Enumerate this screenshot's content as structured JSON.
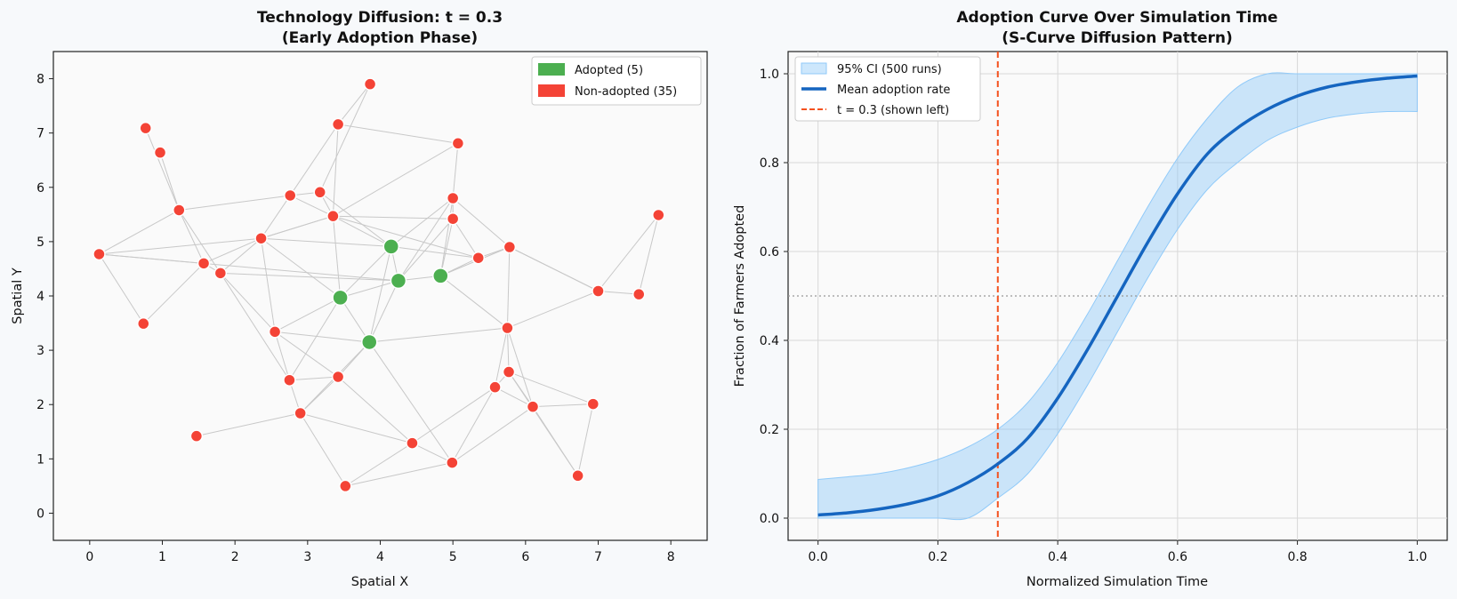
{
  "chart_data": [
    {
      "type": "scatter",
      "subtype": "network-graph",
      "title": [
        "Technology Diffusion: t = 0.3",
        "(Early Adoption Phase)"
      ],
      "xlabel": "Spatial X",
      "ylabel": "Spatial Y",
      "xlim": [
        -0.5,
        8.5
      ],
      "ylim": [
        -0.5,
        8.5
      ],
      "xticks": [
        0,
        1,
        2,
        3,
        4,
        5,
        6,
        7,
        8
      ],
      "yticks": [
        0,
        1,
        2,
        3,
        4,
        5,
        6,
        7,
        8
      ],
      "grid": false,
      "legend": {
        "position": "top-right",
        "entries": [
          {
            "label": "Adopted (5)",
            "color": "#4caf50"
          },
          {
            "label": "Non-adopted (35)",
            "color": "#f44336"
          }
        ]
      },
      "colors": {
        "adopted": "#4caf50",
        "non_adopted": "#f44336",
        "edge": "#c8c8c8"
      },
      "nodes": [
        {
          "id": 0,
          "x": 3.45,
          "y": 3.97,
          "adopted": true
        },
        {
          "id": 1,
          "x": 4.15,
          "y": 4.91,
          "adopted": true
        },
        {
          "id": 2,
          "x": 4.25,
          "y": 4.28,
          "adopted": true
        },
        {
          "id": 3,
          "x": 4.83,
          "y": 4.37,
          "adopted": true
        },
        {
          "id": 4,
          "x": 3.85,
          "y": 3.15,
          "adopted": true
        },
        {
          "id": 5,
          "x": 3.86,
          "y": 7.9,
          "adopted": false
        },
        {
          "id": 6,
          "x": 3.42,
          "y": 7.16,
          "adopted": false
        },
        {
          "id": 7,
          "x": 5.07,
          "y": 6.81,
          "adopted": false
        },
        {
          "id": 8,
          "x": 0.77,
          "y": 7.09,
          "adopted": false
        },
        {
          "id": 9,
          "x": 0.97,
          "y": 6.64,
          "adopted": false
        },
        {
          "id": 10,
          "x": 1.23,
          "y": 5.58,
          "adopted": false
        },
        {
          "id": 11,
          "x": 2.76,
          "y": 5.85,
          "adopted": false
        },
        {
          "id": 12,
          "x": 3.17,
          "y": 5.91,
          "adopted": false
        },
        {
          "id": 13,
          "x": 3.35,
          "y": 5.47,
          "adopted": false
        },
        {
          "id": 14,
          "x": 5.0,
          "y": 5.8,
          "adopted": false
        },
        {
          "id": 15,
          "x": 5.0,
          "y": 5.42,
          "adopted": false
        },
        {
          "id": 16,
          "x": 0.13,
          "y": 4.77,
          "adopted": false
        },
        {
          "id": 17,
          "x": 2.36,
          "y": 5.06,
          "adopted": false
        },
        {
          "id": 18,
          "x": 1.57,
          "y": 4.6,
          "adopted": false
        },
        {
          "id": 19,
          "x": 1.8,
          "y": 4.42,
          "adopted": false
        },
        {
          "id": 20,
          "x": 5.35,
          "y": 4.7,
          "adopted": false
        },
        {
          "id": 21,
          "x": 5.78,
          "y": 4.9,
          "adopted": false
        },
        {
          "id": 22,
          "x": 7.83,
          "y": 5.49,
          "adopted": false
        },
        {
          "id": 23,
          "x": 7.0,
          "y": 4.09,
          "adopted": false
        },
        {
          "id": 24,
          "x": 7.56,
          "y": 4.03,
          "adopted": false
        },
        {
          "id": 25,
          "x": 0.74,
          "y": 3.49,
          "adopted": false
        },
        {
          "id": 26,
          "x": 2.55,
          "y": 3.34,
          "adopted": false
        },
        {
          "id": 27,
          "x": 5.75,
          "y": 3.41,
          "adopted": false
        },
        {
          "id": 28,
          "x": 5.77,
          "y": 2.6,
          "adopted": false
        },
        {
          "id": 29,
          "x": 2.75,
          "y": 2.45,
          "adopted": false
        },
        {
          "id": 30,
          "x": 3.42,
          "y": 2.51,
          "adopted": false
        },
        {
          "id": 31,
          "x": 5.58,
          "y": 2.32,
          "adopted": false
        },
        {
          "id": 32,
          "x": 6.1,
          "y": 1.96,
          "adopted": false
        },
        {
          "id": 33,
          "x": 6.93,
          "y": 2.01,
          "adopted": false
        },
        {
          "id": 34,
          "x": 2.9,
          "y": 1.84,
          "adopted": false
        },
        {
          "id": 35,
          "x": 1.47,
          "y": 1.42,
          "adopted": false
        },
        {
          "id": 36,
          "x": 4.44,
          "y": 1.29,
          "adopted": false
        },
        {
          "id": 37,
          "x": 4.99,
          "y": 0.93,
          "adopted": false
        },
        {
          "id": 38,
          "x": 6.72,
          "y": 0.69,
          "adopted": false
        },
        {
          "id": 39,
          "x": 3.52,
          "y": 0.5,
          "adopted": false
        }
      ],
      "edges": [
        [
          5,
          6
        ],
        [
          5,
          12
        ],
        [
          6,
          7
        ],
        [
          6,
          11
        ],
        [
          6,
          13
        ],
        [
          7,
          14
        ],
        [
          7,
          13
        ],
        [
          8,
          10
        ],
        [
          9,
          10
        ],
        [
          10,
          11
        ],
        [
          10,
          18
        ],
        [
          10,
          19
        ],
        [
          10,
          16
        ],
        [
          11,
          12
        ],
        [
          11,
          17
        ],
        [
          11,
          13
        ],
        [
          12,
          13
        ],
        [
          12,
          1
        ],
        [
          13,
          15
        ],
        [
          13,
          20
        ],
        [
          13,
          1
        ],
        [
          13,
          0
        ],
        [
          13,
          17
        ],
        [
          14,
          15
        ],
        [
          14,
          1
        ],
        [
          14,
          2
        ],
        [
          14,
          21
        ],
        [
          14,
          3
        ],
        [
          15,
          3
        ],
        [
          15,
          20
        ],
        [
          15,
          2
        ],
        [
          1,
          20
        ],
        [
          1,
          2
        ],
        [
          1,
          4
        ],
        [
          1,
          0
        ],
        [
          2,
          3
        ],
        [
          2,
          4
        ],
        [
          3,
          20
        ],
        [
          3,
          21
        ],
        [
          20,
          21
        ],
        [
          21,
          27
        ],
        [
          21,
          23
        ],
        [
          0,
          17
        ],
        [
          0,
          26
        ],
        [
          0,
          2
        ],
        [
          0,
          29
        ],
        [
          0,
          4
        ],
        [
          17,
          18
        ],
        [
          17,
          19
        ],
        [
          17,
          26
        ],
        [
          17,
          1
        ],
        [
          17,
          13
        ],
        [
          18,
          19
        ],
        [
          18,
          25
        ],
        [
          19,
          26
        ],
        [
          19,
          2
        ],
        [
          19,
          29
        ],
        [
          16,
          18
        ],
        [
          16,
          25
        ],
        [
          16,
          17
        ],
        [
          16,
          2
        ],
        [
          26,
          4
        ],
        [
          26,
          29
        ],
        [
          26,
          30
        ],
        [
          4,
          27
        ],
        [
          4,
          37
        ],
        [
          4,
          30
        ],
        [
          4,
          34
        ],
        [
          27,
          28
        ],
        [
          27,
          32
        ],
        [
          27,
          31
        ],
        [
          27,
          3
        ],
        [
          23,
          27
        ],
        [
          23,
          22
        ],
        [
          23,
          24
        ],
        [
          22,
          24
        ],
        [
          23,
          21
        ],
        [
          28,
          31
        ],
        [
          28,
          32
        ],
        [
          31,
          36
        ],
        [
          31,
          37
        ],
        [
          31,
          32
        ],
        [
          32,
          33
        ],
        [
          32,
          38
        ],
        [
          33,
          38
        ],
        [
          28,
          33
        ],
        [
          29,
          34
        ],
        [
          30,
          34
        ],
        [
          30,
          36
        ],
        [
          34,
          35
        ],
        [
          34,
          39
        ],
        [
          29,
          30
        ],
        [
          36,
          37
        ],
        [
          36,
          39
        ],
        [
          37,
          39
        ],
        [
          37,
          32
        ],
        [
          36,
          34
        ],
        [
          38,
          28
        ]
      ]
    },
    {
      "type": "line",
      "title": [
        "Adoption Curve Over Simulation Time",
        "(S-Curve Diffusion Pattern)"
      ],
      "xlabel": "Normalized Simulation Time",
      "ylabel": "Fraction of Farmers Adopted",
      "xlim": [
        -0.05,
        1.05
      ],
      "ylim": [
        -0.05,
        1.05
      ],
      "xticks": [
        0.0,
        0.2,
        0.4,
        0.6,
        0.8,
        1.0
      ],
      "yticks": [
        0.0,
        0.2,
        0.4,
        0.6,
        0.8,
        1.0
      ],
      "grid": true,
      "legend": {
        "position": "top-left",
        "entries": [
          {
            "label": "95% CI (500 runs)",
            "kind": "band",
            "color": "#90caf9"
          },
          {
            "label": "Mean adoption rate",
            "kind": "line",
            "color": "#1565c0"
          },
          {
            "label": "t = 0.3 (shown left)",
            "kind": "dashed",
            "color": "#f4511e"
          }
        ]
      },
      "x": [
        0.0,
        0.05,
        0.1,
        0.15,
        0.2,
        0.25,
        0.3,
        0.35,
        0.4,
        0.45,
        0.5,
        0.55,
        0.6,
        0.65,
        0.7,
        0.75,
        0.8,
        0.85,
        0.9,
        0.95,
        1.0
      ],
      "series": [
        {
          "name": "Mean adoption rate",
          "color": "#1565c0",
          "values": [
            0.007,
            0.012,
            0.02,
            0.032,
            0.05,
            0.08,
            0.122,
            0.18,
            0.27,
            0.38,
            0.5,
            0.62,
            0.73,
            0.82,
            0.878,
            0.92,
            0.95,
            0.97,
            0.982,
            0.99,
            0.995
          ]
        },
        {
          "name": "95% CI (500 runs)",
          "kind": "band",
          "color": "#90caf9",
          "lower": [
            0.0,
            0.0,
            0.0,
            0.0,
            0.0,
            0.0,
            0.045,
            0.1,
            0.19,
            0.3,
            0.42,
            0.54,
            0.65,
            0.74,
            0.8,
            0.85,
            0.88,
            0.9,
            0.91,
            0.915,
            0.915
          ],
          "upper": [
            0.087,
            0.093,
            0.1,
            0.113,
            0.132,
            0.16,
            0.2,
            0.26,
            0.35,
            0.46,
            0.58,
            0.7,
            0.81,
            0.9,
            0.97,
            1.0,
            1.0,
            1.0,
            1.0,
            1.0,
            1.0
          ]
        }
      ],
      "vline": {
        "x": 0.3,
        "color": "#f4511e",
        "style": "dashed"
      },
      "hline": {
        "y": 0.5,
        "color": "#999999",
        "style": "dotted"
      }
    }
  ]
}
